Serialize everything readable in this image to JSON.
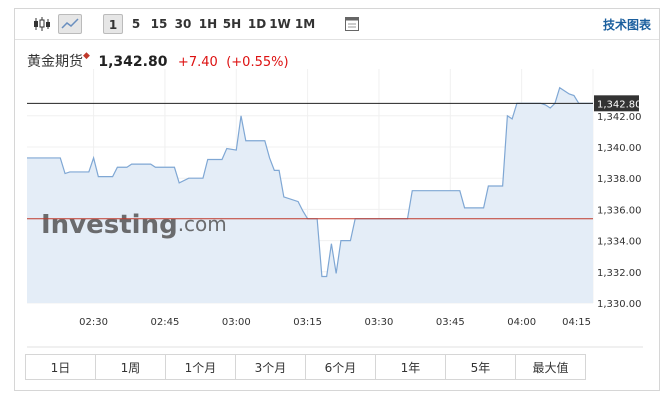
{
  "toolbar": {
    "intervals": [
      "1",
      "5",
      "15",
      "30",
      "1H",
      "5H",
      "1D",
      "1W",
      "1M"
    ],
    "link": "技术图表"
  },
  "header": {
    "name": "黄金期货",
    "change": "+7.40",
    "change_pct": "(+0.55%)"
  },
  "chart_data": {
    "type": "area",
    "x": [
      "02:16",
      "02:23",
      "02:24",
      "02:25",
      "02:29",
      "02:30",
      "02:31",
      "02:34",
      "02:35",
      "02:37",
      "02:38",
      "02:42",
      "02:43",
      "02:47",
      "02:48",
      "02:50",
      "02:53",
      "02:54",
      "02:57",
      "02:58",
      "03:00",
      "03:01",
      "03:02",
      "03:06",
      "03:07",
      "03:08",
      "03:09",
      "03:10",
      "03:13",
      "03:14",
      "03:15",
      "03:17",
      "03:18",
      "03:19",
      "03:20",
      "03:21",
      "03:22",
      "03:24",
      "03:25",
      "03:36",
      "03:37",
      "03:47",
      "03:48",
      "03:52",
      "03:53",
      "03:56",
      "03:57",
      "03:58",
      "03:59",
      "04:04",
      "04:05",
      "04:06",
      "04:07",
      "04:08",
      "04:10",
      "04:11",
      "04:12",
      "04:15"
    ],
    "values": [
      1339.3,
      1339.3,
      1338.3,
      1338.4,
      1338.4,
      1339.3,
      1338.1,
      1338.1,
      1338.7,
      1338.7,
      1338.9,
      1338.9,
      1338.7,
      1338.7,
      1337.7,
      1338.0,
      1338.0,
      1339.2,
      1339.2,
      1339.9,
      1339.8,
      1342.0,
      1340.4,
      1340.4,
      1339.3,
      1338.5,
      1338.5,
      1336.8,
      1336.5,
      1335.9,
      1335.4,
      1335.4,
      1331.7,
      1331.7,
      1333.8,
      1331.9,
      1334.0,
      1334.0,
      1335.4,
      1335.4,
      1337.2,
      1337.2,
      1336.1,
      1336.1,
      1337.5,
      1337.5,
      1342.0,
      1341.8,
      1342.8,
      1342.8,
      1342.7,
      1342.5,
      1342.8,
      1343.8,
      1343.4,
      1343.3,
      1342.8,
      1342.8
    ],
    "line_color": "#7fa7d4",
    "area_color": "#e4edf7",
    "last_price": 1342.8,
    "last_price_label": "1,342.80",
    "prev_close": 1335.4,
    "prev_close_color": "#c0392b",
    "xlim": [
      "02:16",
      "04:15"
    ],
    "xticks": [
      "02:30",
      "02:45",
      "03:00",
      "03:15",
      "03:30",
      "03:45",
      "04:00",
      "04:15"
    ],
    "ylim": [
      1330,
      1345
    ],
    "yticks": [
      {
        "value": 1330,
        "label": "1,330.00"
      },
      {
        "value": 1332,
        "label": "1,332.00"
      },
      {
        "value": 1334,
        "label": "1,334.00"
      },
      {
        "value": 1336,
        "label": "1,336.00"
      },
      {
        "value": 1338,
        "label": "1,338.00"
      },
      {
        "value": 1340,
        "label": "1,340.00"
      },
      {
        "value": 1342,
        "label": "1,342.00"
      }
    ],
    "grid": true,
    "watermark": {
      "brand": "Investing",
      "suffix": ".com"
    }
  },
  "ranges": [
    "1日",
    "1周",
    "1个月",
    "3个月",
    "6个月",
    "1年",
    "5年",
    "最大值"
  ]
}
